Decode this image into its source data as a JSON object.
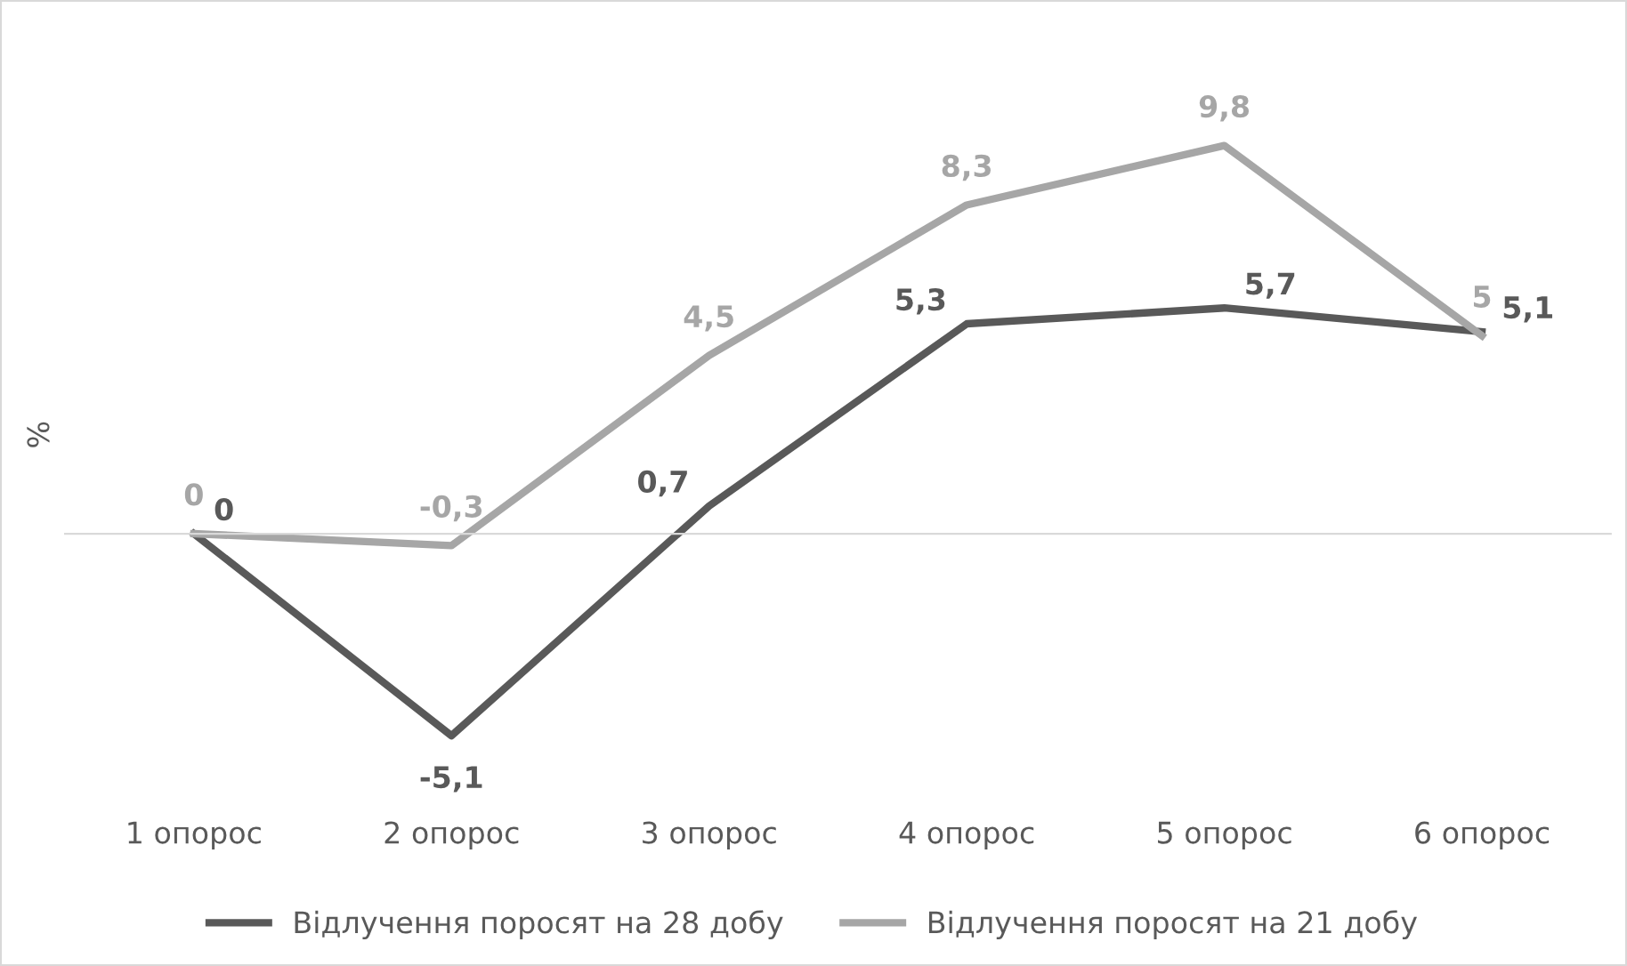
{
  "chart_data": {
    "type": "line",
    "ylabel": "%",
    "categories": [
      "1 опорос",
      "2 опорос",
      "3 опорос",
      "4 опорос",
      "5 опорос",
      "6 опорос"
    ],
    "series": [
      {
        "name": "Відлучення поросят на 28 добу",
        "color": "#595959",
        "values": [
          0,
          -5.1,
          0.7,
          5.3,
          5.7,
          5.1
        ],
        "value_labels": [
          "0",
          "-5,1",
          "0,7",
          "5,3",
          "5,7",
          "5,1"
        ]
      },
      {
        "name": "Відлучення поросят на 21 добу",
        "color": "#a6a6a6",
        "values": [
          0,
          -0.3,
          4.5,
          8.3,
          9.8,
          5
        ],
        "value_labels": [
          "0",
          "-0,3",
          "4,5",
          "8,3",
          "9,8",
          "5"
        ]
      }
    ],
    "grid": false,
    "legend": "bottom",
    "marker": "none",
    "line_style": "solid"
  }
}
